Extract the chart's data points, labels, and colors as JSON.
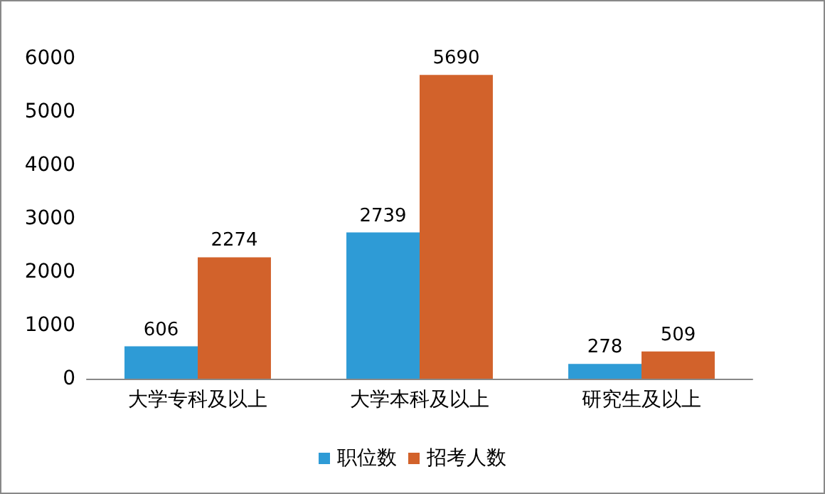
{
  "chart_data": {
    "type": "bar",
    "categories": [
      "大学专科及以上",
      "大学本科及以上",
      "研究生及以上"
    ],
    "series": [
      {
        "name": "职位数",
        "color": "#2e9bd6",
        "values": [
          606,
          2739,
          278
        ]
      },
      {
        "name": "招考人数",
        "color": "#d2622b",
        "values": [
          2274,
          5690,
          509
        ]
      }
    ],
    "ylim": [
      0,
      6000
    ],
    "yticks": [
      0,
      1000,
      2000,
      3000,
      4000,
      5000,
      6000
    ],
    "data_labels": true,
    "legend": "bottom",
    "grid": false
  }
}
